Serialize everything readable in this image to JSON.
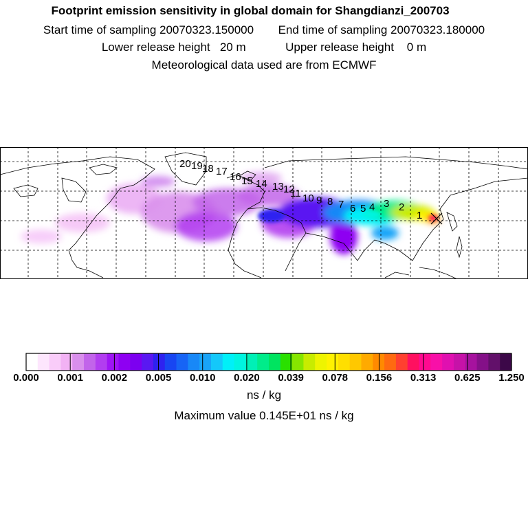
{
  "header": {
    "title": "Footprint emission sensitivity in global domain for Shangdianzi_200703",
    "start_label": "Start time of sampling 20070323.150000",
    "end_label": "End time of sampling 20070323.180000",
    "lower_label": "Lower release height   20 m",
    "upper_label": "Upper release height    0 m",
    "met_label": "Meteorological data used are from ECMWF"
  },
  "map": {
    "grid": "on",
    "receptor_marker": "x-mark",
    "trajectory_labels": [
      "1",
      "2",
      "3",
      "4",
      "5",
      "6",
      "7",
      "8",
      "9",
      "10",
      "11",
      "12",
      "13",
      "14",
      "15",
      "16",
      "17",
      "18",
      "19",
      "20"
    ]
  },
  "colorbar": {
    "tick_labels": [
      "0.000",
      "0.001",
      "0.002",
      "0.005",
      "0.010",
      "0.020",
      "0.039",
      "0.078",
      "0.156",
      "0.313",
      "0.625",
      "1.250"
    ],
    "colors": [
      "#ffffff",
      "#fde6fd",
      "#f9ccf9",
      "#f2b2f4",
      "#d98fec",
      "#c264ea",
      "#b23df0",
      "#9f14f5",
      "#8e00f2",
      "#7c00f0",
      "#5a18f2",
      "#2e22f0",
      "#1846f2",
      "#1764f5",
      "#1888f7",
      "#19a4f8",
      "#14c8fa",
      "#00f0f8",
      "#00f4e0",
      "#00f0b6",
      "#00ec8a",
      "#00e460",
      "#2ae000",
      "#86e600",
      "#c8ec00",
      "#eef400",
      "#fff200",
      "#ffdf00",
      "#ffc800",
      "#ffaa00",
      "#ff8a00",
      "#ff6a10",
      "#ff4030",
      "#ff1060",
      "#ff0a90",
      "#f810a8",
      "#e010b0",
      "#c612a8",
      "#a6129e",
      "#841088",
      "#62106a",
      "#3c0848"
    ],
    "unit": "ns / kg"
  },
  "max_value_label": "Maximum value  0.145E+01 ns / kg"
}
